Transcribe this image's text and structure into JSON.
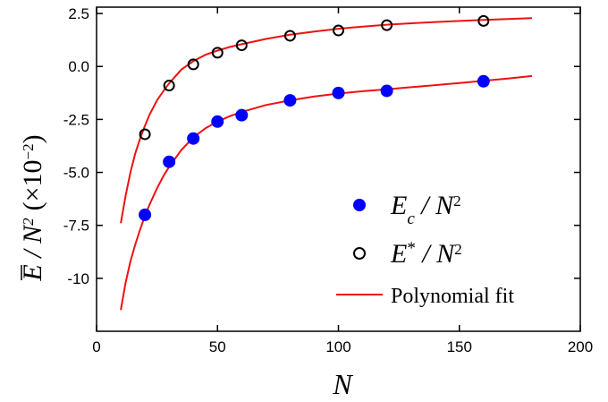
{
  "chart_data": {
    "type": "scatter",
    "xlabel": "N",
    "ylabel": "E / N",
    "ylabel_sup": "2",
    "ylabel_units": "(×10",
    "ylabel_units_exp": "−2",
    "ylabel_units_close": ")",
    "xlim": [
      0,
      200
    ],
    "ylim": [
      -12.5,
      2.8
    ],
    "xticks": [
      0,
      50,
      100,
      150,
      200
    ],
    "xtick_labels": [
      "0",
      "50",
      "100",
      "150",
      "200"
    ],
    "yticks": [
      2.5,
      0.0,
      -2.5,
      -5.0,
      -7.5,
      -10
    ],
    "ytick_labels": [
      "2.5",
      "0.0",
      "-2.5",
      "-5.0",
      "-7.5",
      "-10"
    ],
    "grid": false,
    "legend_position": "bottom-right",
    "series": [
      {
        "name": "E_c / N^2",
        "legend_main": "E",
        "legend_sub": "c",
        "legend_tail": " / N",
        "legend_sup": "2",
        "marker": "filled-circle",
        "color": "#0000ff",
        "x": [
          20,
          30,
          40,
          50,
          60,
          80,
          100,
          120,
          160
        ],
        "y": [
          -7.0,
          -4.5,
          -3.4,
          -2.6,
          -2.3,
          -1.6,
          -1.25,
          -1.15,
          -0.7
        ]
      },
      {
        "name": "E* / N^2",
        "legend_main": "E",
        "legend_sup_star": "*",
        "legend_tail": " / N",
        "legend_sup": "2",
        "marker": "open-circle",
        "color": "#000000",
        "x": [
          20,
          30,
          40,
          50,
          60,
          80,
          100,
          120,
          160
        ],
        "y": [
          -3.2,
          -0.9,
          0.1,
          0.65,
          1.0,
          1.45,
          1.7,
          1.95,
          2.15
        ]
      }
    ],
    "fits": [
      {
        "name": "Polynomial fit",
        "color": "#ee1111",
        "x": [
          10,
          12,
          14,
          16,
          18,
          20,
          22,
          25,
          28,
          30,
          35,
          40,
          45,
          50,
          55,
          60,
          70,
          80,
          90,
          100,
          110,
          120,
          130,
          140,
          150,
          160,
          170,
          180
        ],
        "y": [
          -11.5,
          -10.2,
          -9.2,
          -8.4,
          -7.7,
          -7.05,
          -6.5,
          -5.75,
          -5.1,
          -4.75,
          -3.95,
          -3.35,
          -2.92,
          -2.6,
          -2.35,
          -2.15,
          -1.82,
          -1.6,
          -1.42,
          -1.28,
          -1.17,
          -1.08,
          -0.98,
          -0.88,
          -0.78,
          -0.68,
          -0.57,
          -0.45
        ]
      },
      {
        "name": "Polynomial fit (E*)",
        "color": "#ee1111",
        "x": [
          10,
          12,
          14,
          16,
          18,
          20,
          22,
          25,
          28,
          30,
          35,
          40,
          45,
          50,
          55,
          60,
          70,
          80,
          90,
          100,
          110,
          120,
          130,
          140,
          150,
          160,
          170,
          180
        ],
        "y": [
          -7.4,
          -6.1,
          -5.0,
          -4.1,
          -3.4,
          -2.8,
          -2.25,
          -1.6,
          -1.1,
          -0.8,
          -0.15,
          0.25,
          0.55,
          0.75,
          0.92,
          1.05,
          1.3,
          1.5,
          1.65,
          1.78,
          1.88,
          1.97,
          2.04,
          2.1,
          2.15,
          2.2,
          2.24,
          2.28
        ]
      }
    ],
    "legend": [
      {
        "label_main": "E",
        "label_sub": "c",
        "label_tail": " / N",
        "label_sup": "2",
        "marker": "filled-circle",
        "color": "#0000ff"
      },
      {
        "label_main": "E",
        "label_star": "*",
        "label_tail": " / N",
        "label_sup": "2",
        "marker": "open-circle",
        "color": "#000000"
      },
      {
        "label": "Polynomial fit",
        "marker": "line",
        "color": "#ee1111"
      }
    ]
  }
}
